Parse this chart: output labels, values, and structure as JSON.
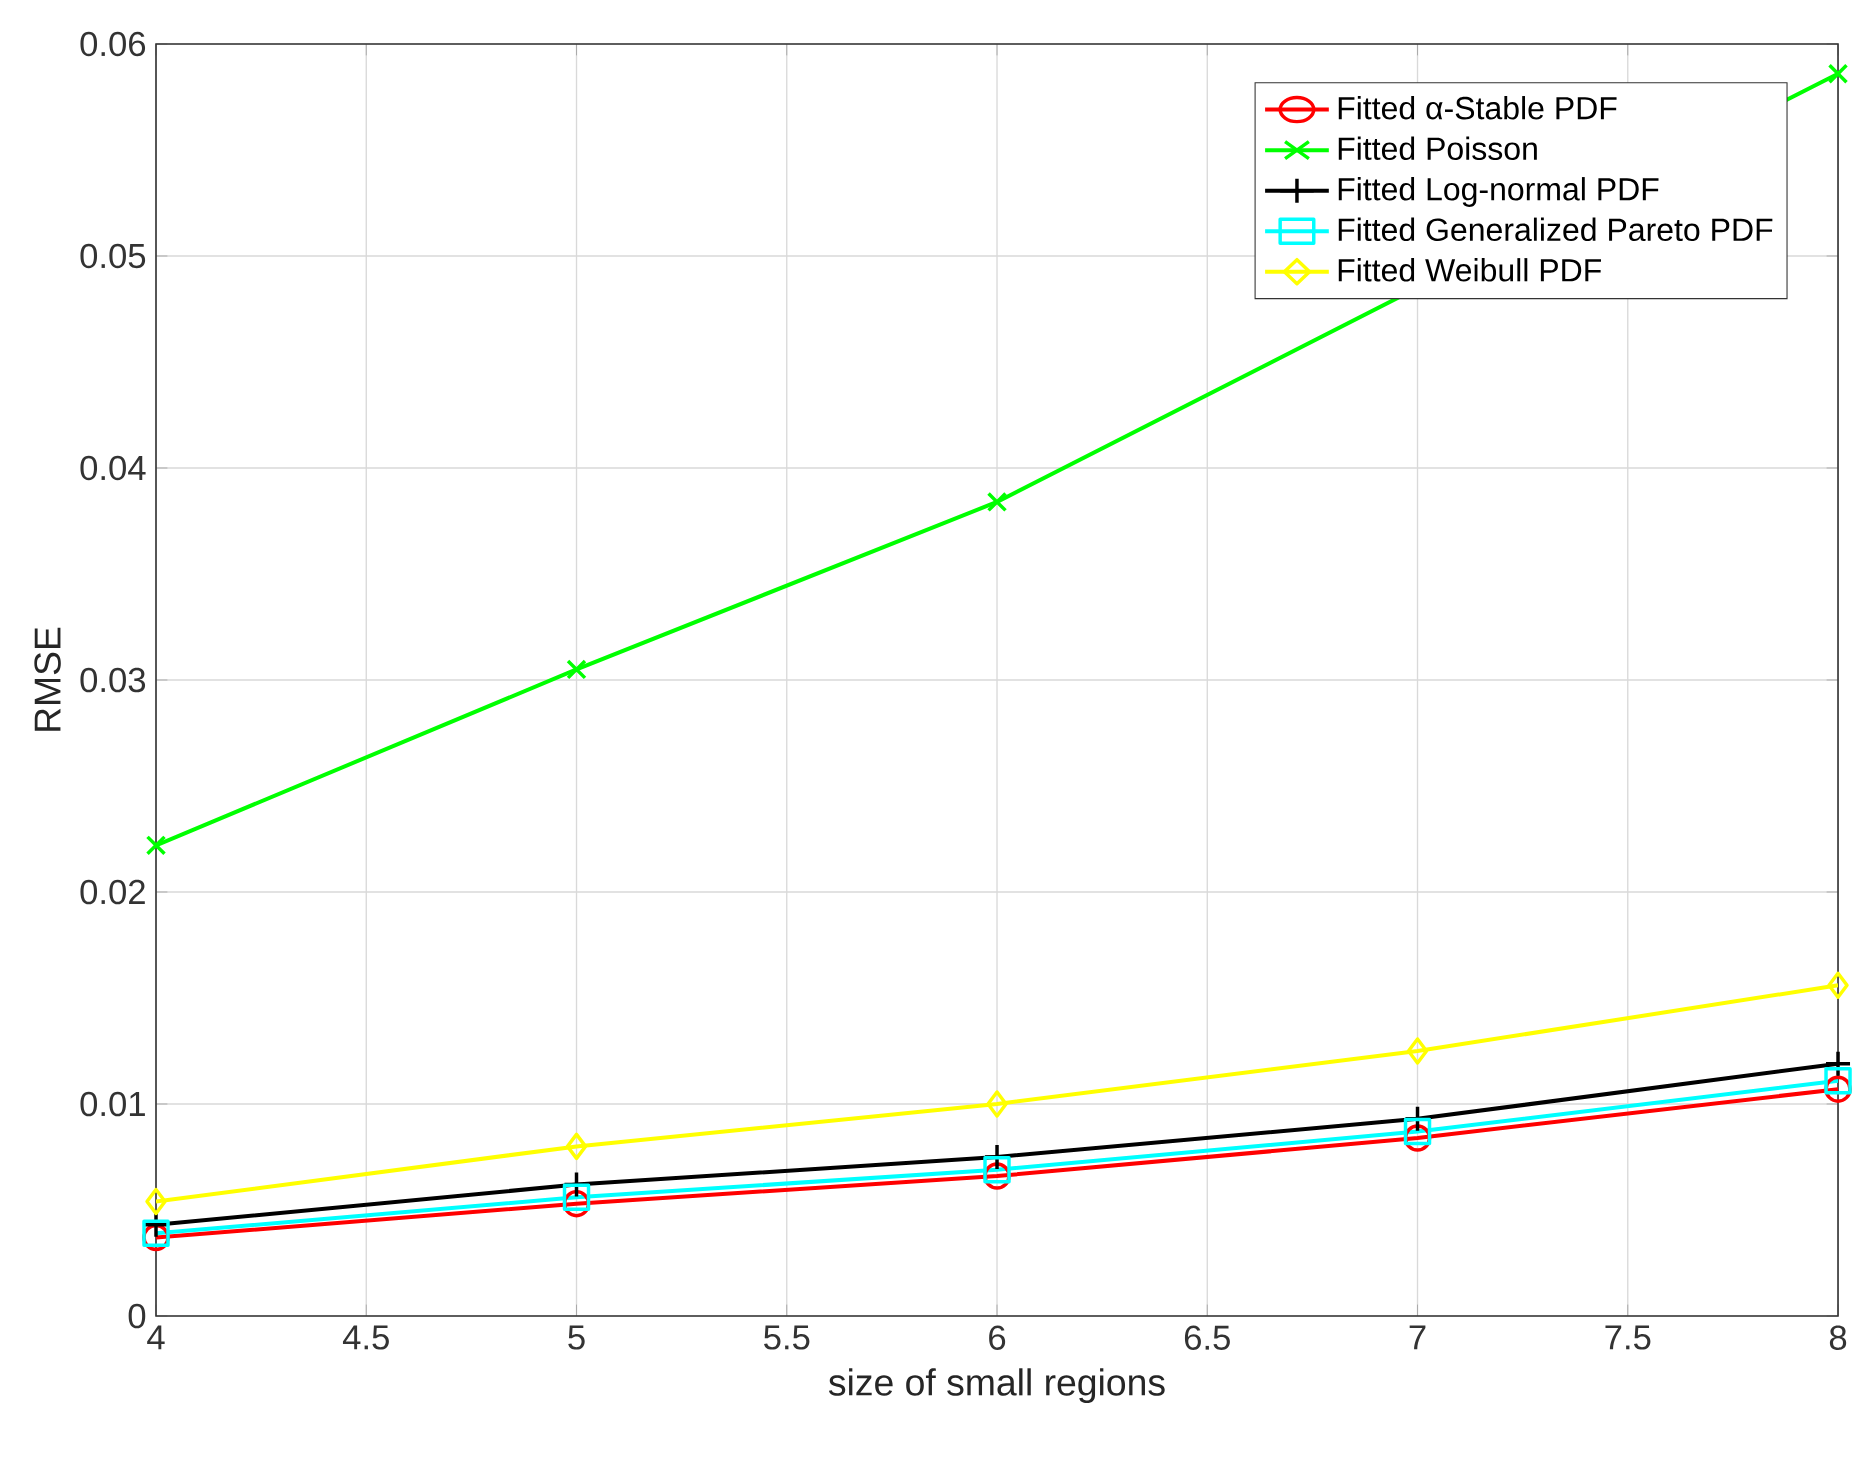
{
  "chart_data": {
    "type": "line",
    "xlabel": "size of small regions",
    "ylabel": "RMSE",
    "x": [
      4,
      5,
      6,
      7,
      8
    ],
    "series": [
      {
        "name": "Fitted α-Stable PDF",
        "color": "#ff0000",
        "marker": "circle",
        "values": [
          0.0037,
          0.0053,
          0.0066,
          0.0084,
          0.0107
        ]
      },
      {
        "name": "Fitted Poisson",
        "color": "#00ff00",
        "marker": "cross",
        "values": [
          0.0222,
          0.0305,
          0.0384,
          null,
          0.0586
        ]
      },
      {
        "name": "Fitted Log-normal PDF",
        "color": "#000000",
        "marker": "plus",
        "values": [
          0.0043,
          0.0062,
          0.0075,
          0.0093,
          0.0119
        ]
      },
      {
        "name": "Fitted Generalized Pareto PDF",
        "color": "#00ffff",
        "marker": "square",
        "values": [
          0.0039,
          0.0056,
          0.0069,
          0.0087,
          0.0111
        ]
      },
      {
        "name": "Fitted Weibull PDF",
        "color": "#ffff00",
        "marker": "diamond",
        "values": [
          0.0054,
          0.008,
          0.01,
          0.0125,
          0.0156
        ]
      }
    ],
    "xlim": [
      4,
      8
    ],
    "ylim": [
      0,
      0.06
    ],
    "xticks": [
      4,
      4.5,
      5,
      5.5,
      6,
      6.5,
      7,
      7.5,
      8
    ],
    "yticks": [
      0,
      0.01,
      0.02,
      0.03,
      0.04,
      0.05,
      0.06
    ],
    "grid": true,
    "legend": "top right",
    "line_style": "solid"
  }
}
